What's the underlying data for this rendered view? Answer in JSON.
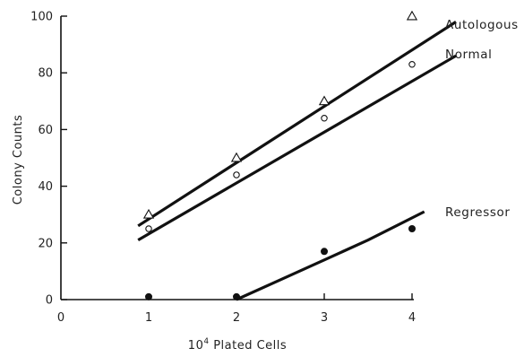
{
  "chart_data": {
    "type": "scatter",
    "xlabel_base": "10",
    "xlabel_exp": "4",
    "xlabel_rest": " Plated Cells",
    "ylabel": "Colony  Counts",
    "xlim": [
      0,
      4
    ],
    "ylim": [
      0,
      100
    ],
    "xticks": [
      "0",
      "1",
      "2",
      "3",
      "4"
    ],
    "yticks": [
      "0",
      "20",
      "40",
      "60",
      "80",
      "100"
    ],
    "grid": false,
    "series": [
      {
        "name": "Autologous",
        "marker": "triangle-open",
        "points": [
          [
            1,
            30
          ],
          [
            2,
            50
          ],
          [
            3,
            70
          ],
          [
            4,
            100
          ]
        ],
        "fit": [
          [
            0.88,
            26
          ],
          [
            4.5,
            98
          ]
        ]
      },
      {
        "name": "Normal",
        "marker": "circle-open",
        "points": [
          [
            1,
            25
          ],
          [
            2,
            44
          ],
          [
            3,
            64
          ],
          [
            4,
            83
          ]
        ],
        "fit": [
          [
            0.88,
            21
          ],
          [
            4.5,
            86
          ]
        ]
      },
      {
        "name": "Regressor",
        "marker": "circle-filled",
        "points": [
          [
            1,
            1
          ],
          [
            2,
            1
          ],
          [
            3,
            17
          ],
          [
            4,
            25
          ]
        ],
        "fit": [
          [
            2.0,
            0
          ],
          [
            2.5,
            7
          ],
          [
            3.0,
            14
          ],
          [
            3.5,
            21
          ],
          [
            4.14,
            31
          ]
        ]
      }
    ]
  }
}
